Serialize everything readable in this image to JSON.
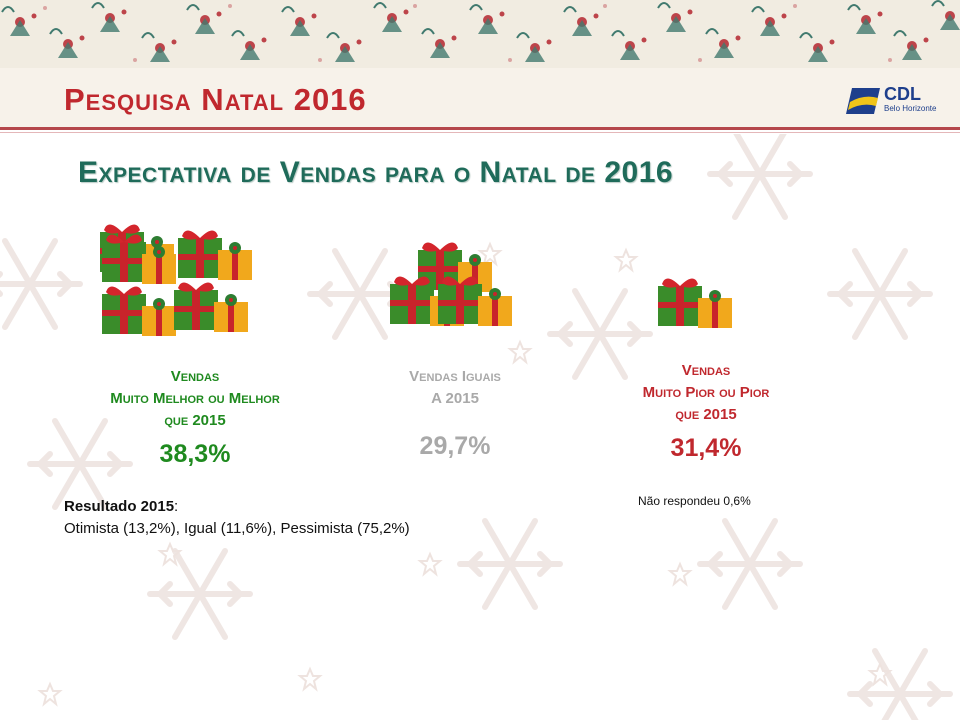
{
  "header": {
    "title": "Pesquisa Natal 2016",
    "logo_text": "CDL",
    "logo_subtext": "Belo Horizonte"
  },
  "main": {
    "subtitle": "Expectativa de Vendas para o Natal de 2016",
    "columns": [
      {
        "label_line1": "Vendas",
        "label_line2": "Muito Melhor ou Melhor",
        "label_line3": "que 2015",
        "percent": "38,3%",
        "color": "#1f8a1f",
        "gift_icon": "gift-boxes-icon"
      },
      {
        "label_line1": "Vendas Iguais",
        "label_line2": "A 2015",
        "percent": "29,7%",
        "color": "#a9a9a9",
        "gift_icon": "gift-boxes-icon"
      },
      {
        "label_line1": "Vendas",
        "label_line2": "Muito Pior ou Pior",
        "label_line3": "que 2015",
        "percent": "31,4%",
        "color": "#c0282e",
        "gift_icon": "gift-box-icon"
      }
    ],
    "no_response": "Não respondeu 0,6%",
    "result": {
      "label": "Resultado 2015",
      "colon": ":",
      "detail": "Otimista (13,2%), Igual (11,6%), Pessimista (75,2%)"
    }
  },
  "colors": {
    "title": "#c0282e",
    "subtitle": "#1f6b5a",
    "rule": "#b5474b"
  }
}
